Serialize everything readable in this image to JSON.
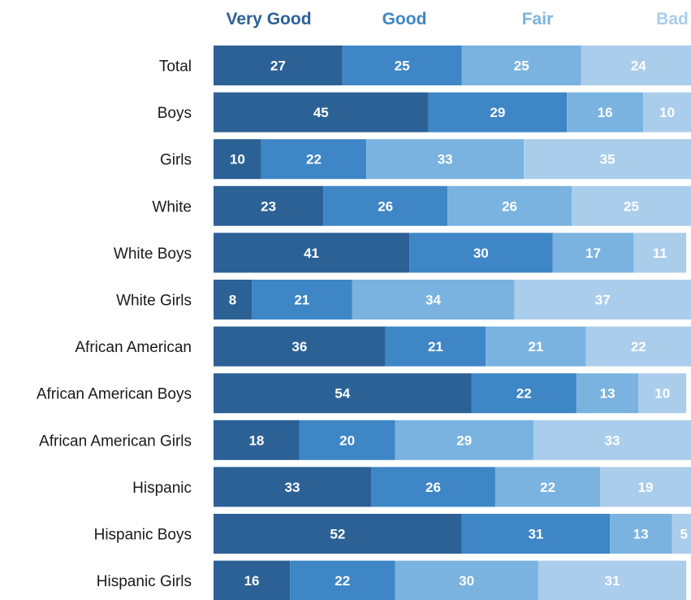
{
  "chart_data": {
    "type": "bar",
    "orientation": "horizontal",
    "stacked": true,
    "categories": [
      "Total",
      "Boys",
      "Girls",
      "White",
      "White Boys",
      "White Girls",
      "African American",
      "African American Boys",
      "African American Girls",
      "Hispanic",
      "Hispanic Boys",
      "Hispanic Girls"
    ],
    "series": [
      {
        "name": "Very Good",
        "color": "#2c6196",
        "values": [
          27,
          45,
          10,
          23,
          41,
          8,
          36,
          54,
          18,
          33,
          52,
          16
        ]
      },
      {
        "name": "Good",
        "color": "#3e86c6",
        "values": [
          25,
          29,
          22,
          26,
          30,
          21,
          21,
          22,
          20,
          26,
          31,
          22
        ]
      },
      {
        "name": "Fair",
        "color": "#7ab3e0",
        "values": [
          25,
          16,
          33,
          26,
          17,
          34,
          21,
          13,
          29,
          22,
          13,
          30
        ]
      },
      {
        "name": "Bad",
        "color": "#abcdec",
        "values": [
          24,
          10,
          35,
          25,
          11,
          37,
          22,
          10,
          33,
          19,
          5,
          31
        ]
      }
    ],
    "legend_position": "top",
    "grid": false,
    "data_labels": true
  }
}
